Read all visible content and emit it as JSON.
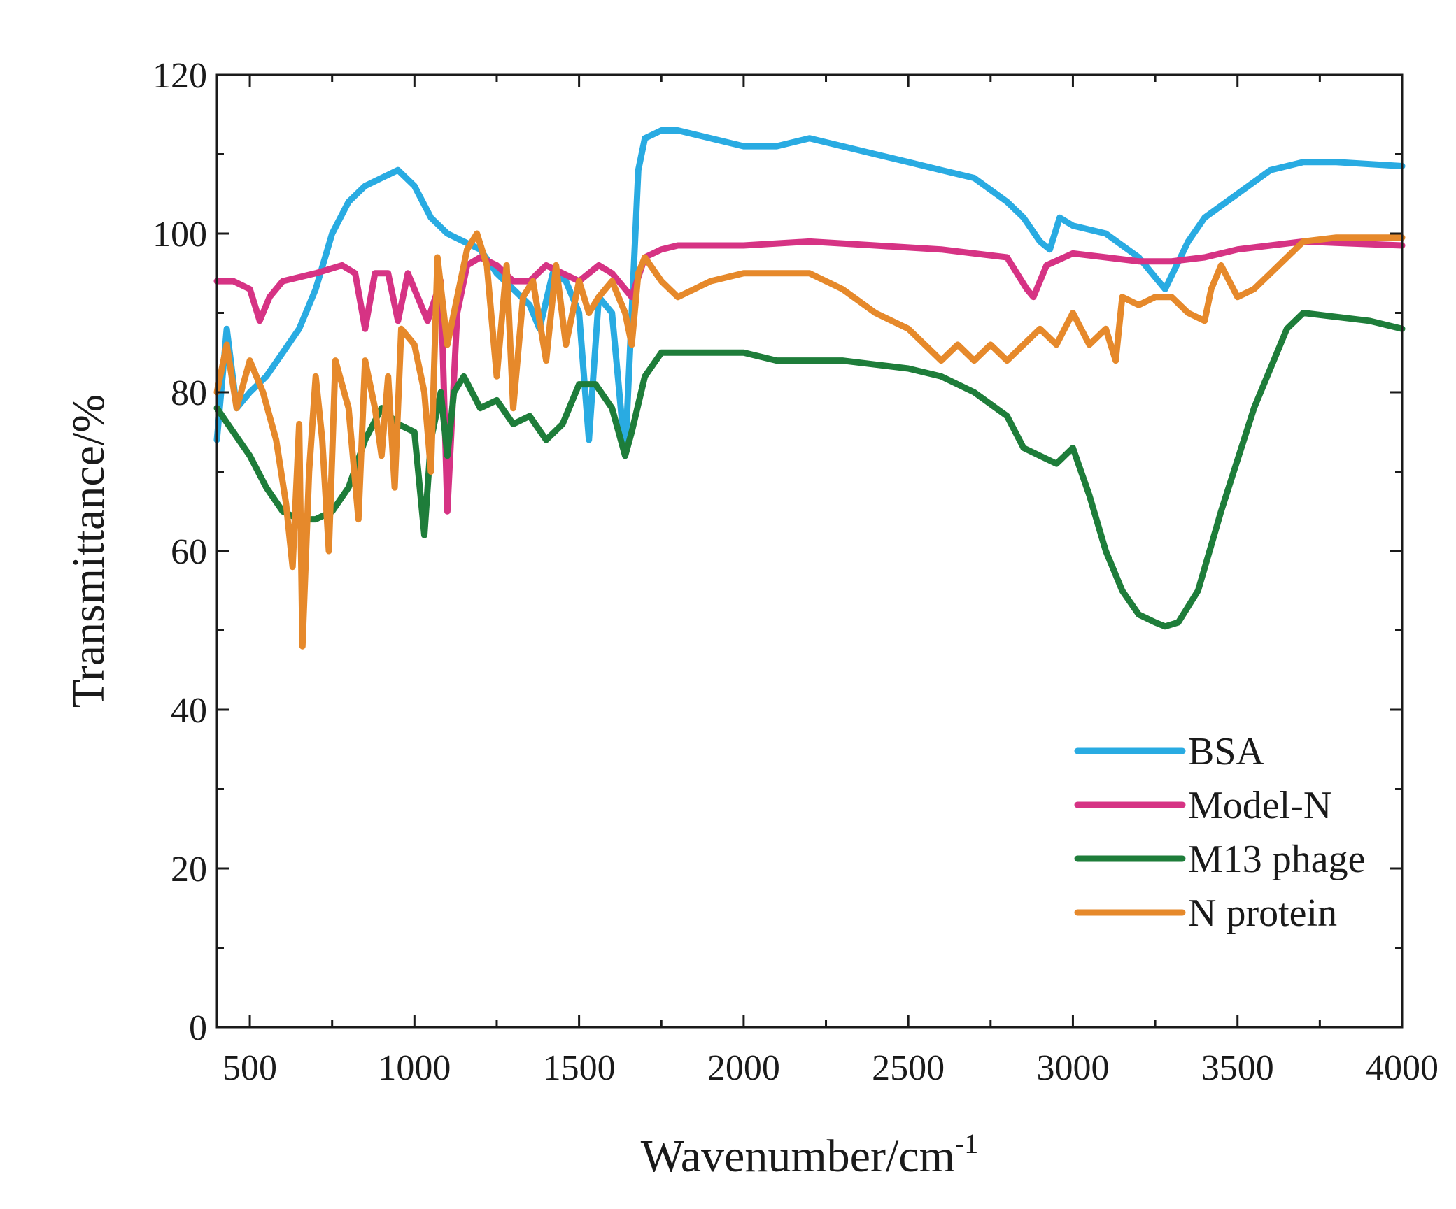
{
  "chart_data": {
    "type": "line",
    "title": "",
    "xlabel": "Wavenumber/cm",
    "xlabel_superscript": "-1",
    "ylabel": "Transmittance/%",
    "xlim": [
      400,
      4000
    ],
    "ylim": [
      0,
      120
    ],
    "xticks": [
      500,
      1000,
      1500,
      2000,
      2500,
      3000,
      3500,
      4000
    ],
    "xtick_labels": [
      "500",
      "1000",
      "1500",
      "2000",
      "2500",
      "3000",
      "3500",
      "4000"
    ],
    "yticks": [
      0,
      20,
      40,
      60,
      80,
      100,
      120
    ],
    "ytick_labels": [
      "0",
      "20",
      "40",
      "60",
      "80",
      "100",
      "120"
    ],
    "grid": false,
    "legend_position": "bottom-right",
    "series": [
      {
        "name": "BSA",
        "color": "#29abe2",
        "x": [
          400,
          430,
          460,
          500,
          550,
          600,
          650,
          700,
          750,
          800,
          850,
          900,
          950,
          1000,
          1050,
          1100,
          1150,
          1200,
          1250,
          1300,
          1350,
          1380,
          1420,
          1460,
          1500,
          1530,
          1560,
          1600,
          1640,
          1660,
          1680,
          1700,
          1750,
          1800,
          1900,
          2000,
          2100,
          2200,
          2300,
          2400,
          2500,
          2600,
          2700,
          2800,
          2850,
          2900,
          2930,
          2960,
          3000,
          3100,
          3200,
          3280,
          3350,
          3400,
          3500,
          3600,
          3700,
          3800,
          4000
        ],
        "values": [
          74,
          88,
          78,
          80,
          82,
          85,
          88,
          93,
          100,
          104,
          106,
          107,
          108,
          106,
          102,
          100,
          99,
          98,
          95,
          93,
          91,
          88,
          95,
          94,
          90,
          74,
          92,
          90,
          72,
          90,
          108,
          112,
          113,
          113,
          112,
          111,
          111,
          112,
          111,
          110,
          109,
          108,
          107,
          104,
          102,
          99,
          98,
          102,
          101,
          100,
          97,
          93,
          99,
          102,
          105,
          108,
          109,
          109,
          108.5
        ]
      },
      {
        "name": "Model-N",
        "color": "#d63384",
        "x": [
          400,
          450,
          500,
          530,
          560,
          600,
          700,
          780,
          820,
          850,
          880,
          920,
          950,
          980,
          1000,
          1040,
          1080,
          1100,
          1130,
          1160,
          1200,
          1250,
          1300,
          1350,
          1400,
          1450,
          1500,
          1560,
          1600,
          1660,
          1700,
          1750,
          1800,
          1900,
          2000,
          2200,
          2400,
          2600,
          2800,
          2860,
          2880,
          2920,
          3000,
          3100,
          3200,
          3300,
          3400,
          3500,
          3600,
          3700,
          4000
        ],
        "values": [
          94,
          94,
          93,
          89,
          92,
          94,
          95,
          96,
          95,
          88,
          95,
          95,
          89,
          95,
          93,
          89,
          94,
          65,
          90,
          96,
          97,
          96,
          94,
          94,
          96,
          95,
          94,
          96,
          95,
          92,
          97,
          98,
          98.5,
          98.5,
          98.5,
          99,
          98.5,
          98,
          97,
          93,
          92,
          96,
          97.5,
          97,
          96.5,
          96.5,
          97,
          98,
          98.5,
          99,
          98.5
        ]
      },
      {
        "name": "M13 phage",
        "color": "#1e7d3a",
        "x": [
          400,
          450,
          500,
          550,
          600,
          650,
          700,
          750,
          800,
          850,
          900,
          950,
          1000,
          1030,
          1050,
          1080,
          1100,
          1120,
          1150,
          1200,
          1250,
          1300,
          1350,
          1400,
          1450,
          1500,
          1550,
          1600,
          1640,
          1660,
          1700,
          1750,
          1800,
          1900,
          2000,
          2100,
          2200,
          2300,
          2400,
          2500,
          2600,
          2700,
          2800,
          2850,
          2900,
          2950,
          3000,
          3050,
          3100,
          3150,
          3200,
          3250,
          3280,
          3320,
          3380,
          3450,
          3550,
          3650,
          3700,
          3800,
          3900,
          4000
        ],
        "values": [
          78,
          75,
          72,
          68,
          65,
          64,
          64,
          65,
          68,
          74,
          78,
          76,
          75,
          62,
          74,
          80,
          72,
          80,
          82,
          78,
          79,
          76,
          77,
          74,
          76,
          81,
          81,
          78,
          72,
          75,
          82,
          85,
          85,
          85,
          85,
          84,
          84,
          84,
          83.5,
          83,
          82,
          80,
          77,
          73,
          72,
          71,
          73,
          67,
          60,
          55,
          52,
          51,
          50.5,
          51,
          55,
          65,
          78,
          88,
          90,
          89.5,
          89,
          88
        ]
      },
      {
        "name": "N protein",
        "color": "#e6892b",
        "x": [
          400,
          430,
          460,
          500,
          540,
          580,
          610,
          630,
          650,
          660,
          680,
          700,
          720,
          740,
          760,
          800,
          830,
          850,
          880,
          900,
          920,
          940,
          960,
          1000,
          1030,
          1050,
          1070,
          1100,
          1130,
          1160,
          1190,
          1220,
          1250,
          1280,
          1300,
          1330,
          1360,
          1400,
          1430,
          1460,
          1500,
          1530,
          1560,
          1600,
          1640,
          1660,
          1680,
          1700,
          1750,
          1800,
          1850,
          1900,
          2000,
          2100,
          2200,
          2300,
          2400,
          2500,
          2550,
          2600,
          2650,
          2700,
          2750,
          2800,
          2850,
          2900,
          2950,
          3000,
          3050,
          3100,
          3130,
          3150,
          3200,
          3250,
          3300,
          3350,
          3400,
          3420,
          3450,
          3500,
          3550,
          3600,
          3700,
          3800,
          4000
        ],
        "values": [
          80,
          86,
          78,
          84,
          80,
          74,
          66,
          58,
          76,
          48,
          70,
          82,
          74,
          60,
          84,
          78,
          64,
          84,
          78,
          72,
          82,
          68,
          88,
          86,
          80,
          70,
          97,
          86,
          92,
          98,
          100,
          96,
          82,
          96,
          78,
          92,
          94,
          84,
          96,
          86,
          94,
          90,
          92,
          94,
          90,
          86,
          95,
          97,
          94,
          92,
          93,
          94,
          95,
          95,
          95,
          93,
          90,
          88,
          86,
          84,
          86,
          84,
          86,
          84,
          86,
          88,
          86,
          90,
          86,
          88,
          84,
          92,
          91,
          92,
          92,
          90,
          89,
          93,
          96,
          92,
          93,
          95,
          99,
          99.5,
          99.5
        ]
      }
    ]
  }
}
